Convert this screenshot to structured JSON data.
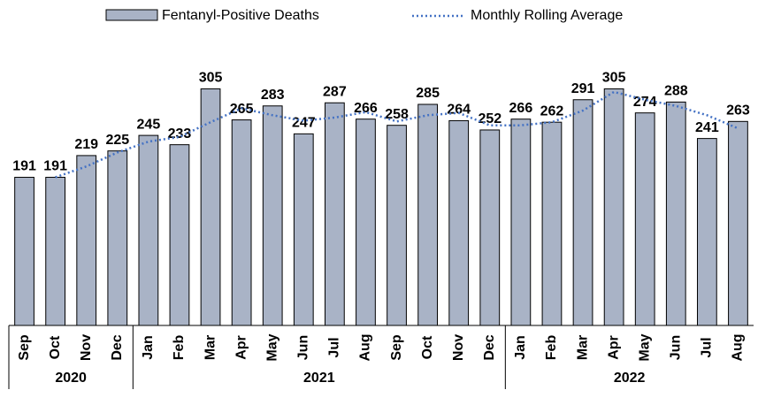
{
  "chart_data": {
    "type": "bar",
    "categories": [
      "Sep",
      "Oct",
      "Nov",
      "Dec",
      "Jan",
      "Feb",
      "Mar",
      "Apr",
      "May",
      "Jun",
      "Jul",
      "Aug",
      "Sep",
      "Oct",
      "Nov",
      "Dec",
      "Jan",
      "Feb",
      "Mar",
      "Apr",
      "May",
      "Jun",
      "Jul",
      "Aug"
    ],
    "groups": [
      {
        "label": "2020",
        "count": 4
      },
      {
        "label": "2021",
        "count": 12
      },
      {
        "label": "2022",
        "count": 8
      }
    ],
    "series": [
      {
        "name": "Fentanyl-Positive Deaths",
        "type": "bar",
        "color": "#a9b3c6",
        "values": [
          191,
          191,
          219,
          225,
          245,
          233,
          305,
          265,
          283,
          247,
          287,
          266,
          258,
          285,
          264,
          252,
          266,
          262,
          291,
          305,
          274,
          288,
          241,
          263
        ]
      },
      {
        "name": "Monthly Rolling Average",
        "type": "line",
        "color": "#4472c4",
        "values": [
          null,
          191,
          205,
          223,
          237,
          243,
          262,
          280,
          271,
          264,
          268,
          275,
          263,
          271,
          274,
          258,
          258,
          262,
          277,
          301,
          291,
          283,
          271,
          254
        ]
      }
    ],
    "ylim": [
      0,
      350
    ],
    "legend": "top"
  }
}
